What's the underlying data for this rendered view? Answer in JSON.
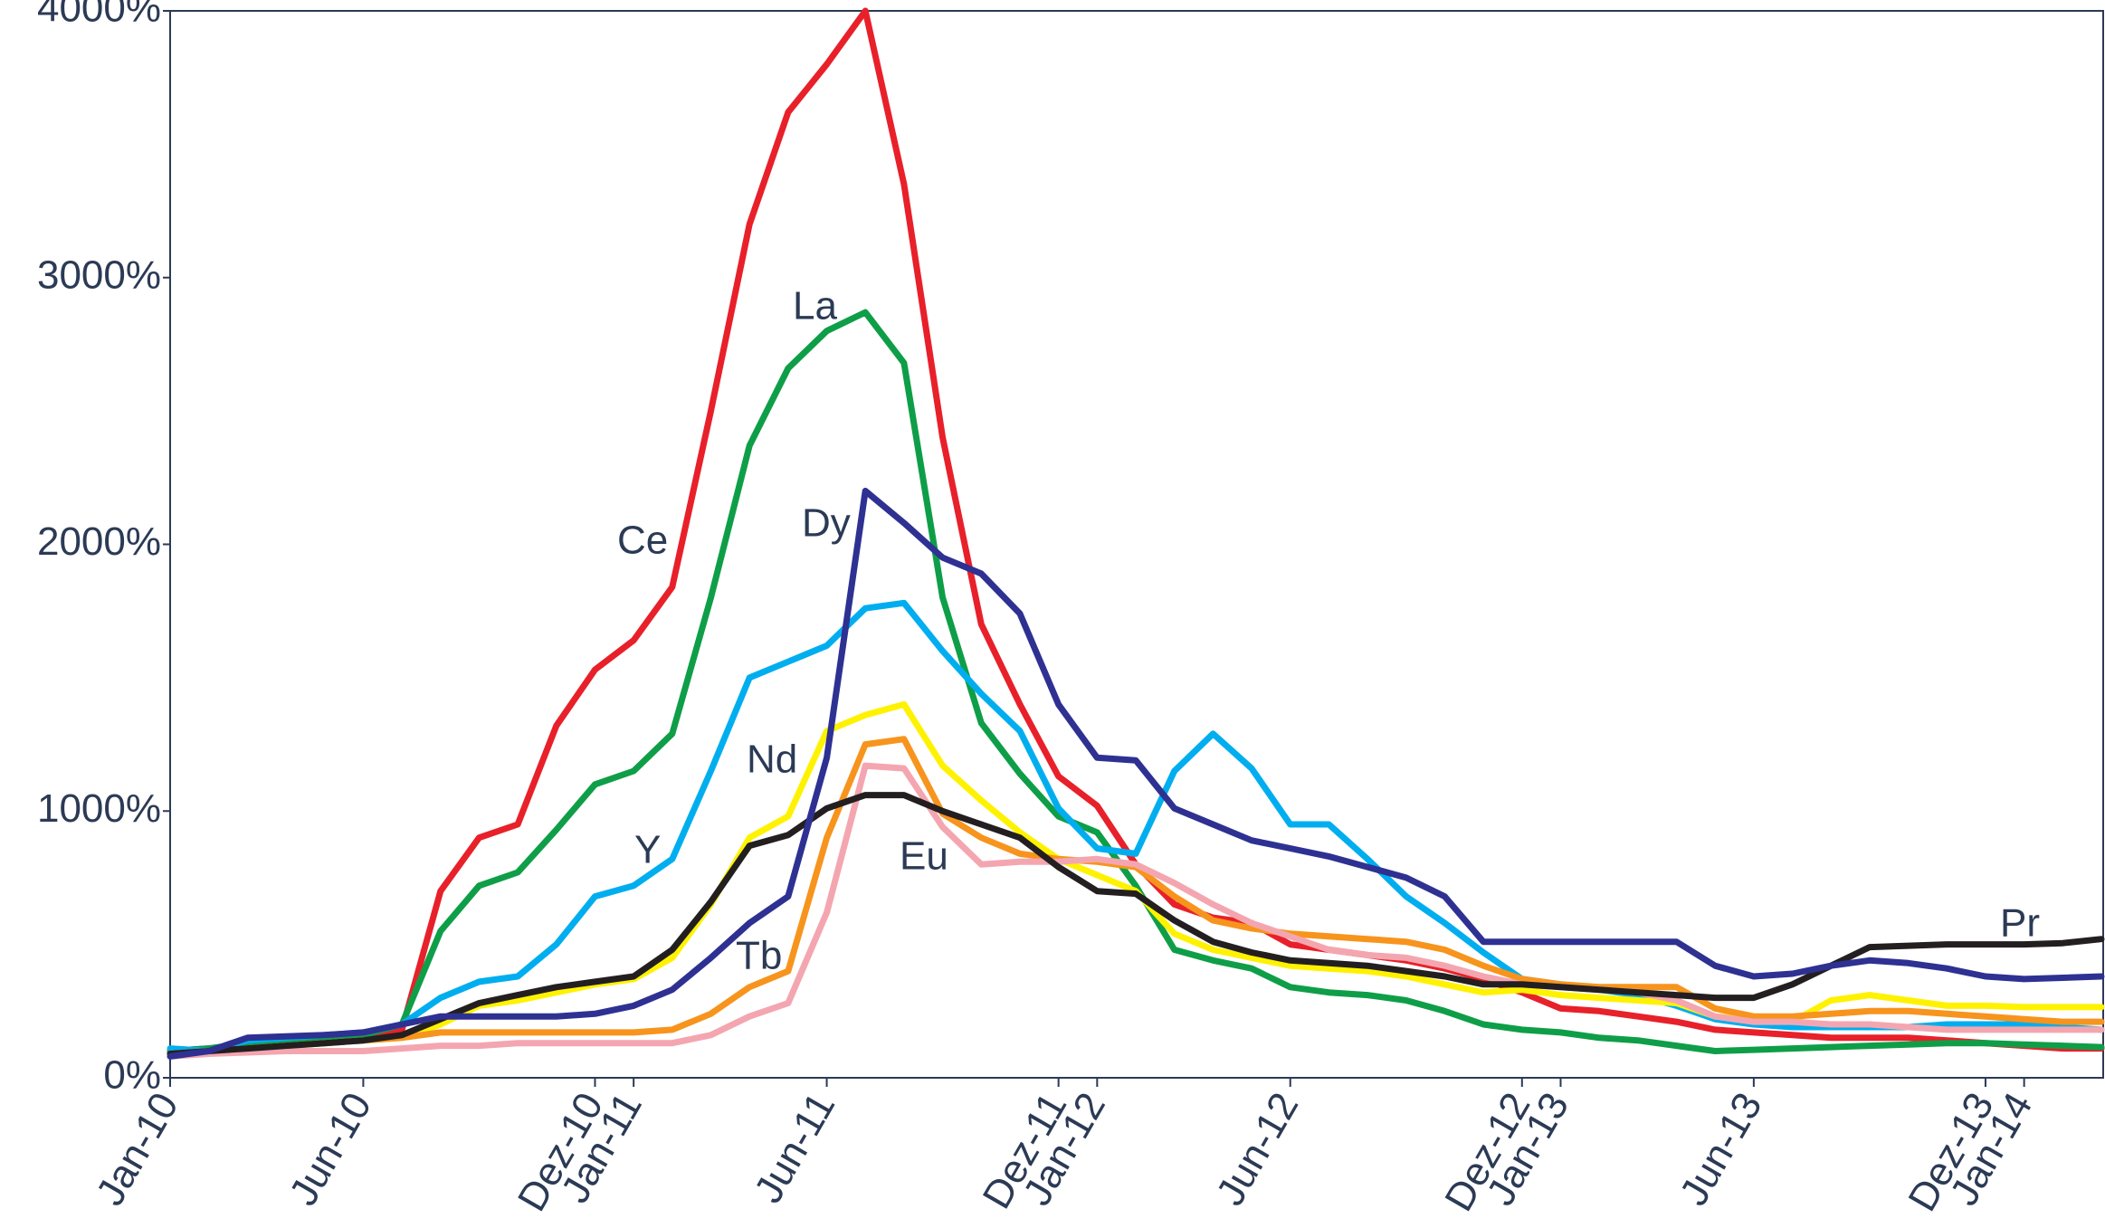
{
  "chart_data": {
    "type": "line",
    "categories": [
      "Jan-10",
      null,
      null,
      null,
      null,
      "Jun-10",
      null,
      null,
      null,
      null,
      null,
      "Dez-10",
      "Jan-11",
      null,
      null,
      null,
      null,
      "Jun-11",
      null,
      null,
      null,
      null,
      null,
      "Dez-11",
      "Jan-12",
      null,
      null,
      null,
      null,
      "Jun-12",
      null,
      null,
      null,
      null,
      null,
      "Dez-12",
      "Jan-13",
      null,
      null,
      null,
      null,
      "Jun-13",
      null,
      null,
      null,
      null,
      null,
      "Dez-13",
      "Jan-14",
      null,
      null
    ],
    "ylim": [
      0,
      4000
    ],
    "yticks": [
      {
        "value": 0,
        "label": "0%"
      },
      {
        "value": 1000,
        "label": "1000%"
      },
      {
        "value": 2000,
        "label": "2000%"
      },
      {
        "value": 3000,
        "label": "3000%"
      },
      {
        "value": 4000,
        "label": "4000%"
      }
    ],
    "series": [
      {
        "name": "Ce",
        "color": "#e8202a",
        "values": [
          100,
          110,
          120,
          130,
          150,
          160,
          180,
          700,
          900,
          950,
          1320,
          1530,
          1640,
          1840,
          2500,
          3200,
          3620,
          3800,
          4000,
          3350,
          2400,
          1700,
          1400,
          1130,
          1020,
          800,
          650,
          600,
          580,
          500,
          480,
          460,
          440,
          410,
          370,
          320,
          260,
          250,
          230,
          210,
          180,
          170,
          160,
          150,
          150,
          150,
          140,
          130,
          120,
          110,
          110
        ]
      },
      {
        "name": "La",
        "color": "#0f9e48",
        "values": [
          100,
          110,
          130,
          140,
          150,
          160,
          200,
          550,
          720,
          770,
          930,
          1100,
          1150,
          1290,
          1800,
          2370,
          2660,
          2800,
          2870,
          2680,
          1800,
          1330,
          1140,
          980,
          920,
          720,
          480,
          440,
          410,
          340,
          320,
          310,
          290,
          250,
          200,
          180,
          170,
          150,
          140,
          120,
          100,
          105,
          110,
          115,
          120,
          125,
          130,
          130,
          125,
          120,
          115
        ]
      },
      {
        "name": "Y",
        "color": "#00aeef",
        "values": [
          110,
          100,
          140,
          150,
          160,
          170,
          200,
          300,
          360,
          380,
          500,
          680,
          720,
          820,
          1150,
          1500,
          1560,
          1620,
          1760,
          1780,
          1600,
          1440,
          1300,
          1010,
          860,
          840,
          1150,
          1290,
          1160,
          950,
          950,
          820,
          680,
          580,
          470,
          370,
          350,
          330,
          310,
          270,
          220,
          200,
          190,
          190,
          190,
          190,
          200,
          200,
          200,
          190,
          180
        ]
      },
      {
        "name": "Nd",
        "color": "#fff200",
        "values": [
          90,
          100,
          110,
          120,
          130,
          140,
          150,
          200,
          270,
          290,
          320,
          350,
          370,
          450,
          650,
          900,
          980,
          1300,
          1360,
          1400,
          1170,
          1040,
          920,
          820,
          760,
          700,
          540,
          480,
          450,
          420,
          410,
          400,
          380,
          350,
          320,
          330,
          310,
          300,
          290,
          280,
          230,
          220,
          210,
          290,
          310,
          290,
          270,
          270,
          265,
          265,
          265
        ]
      },
      {
        "name": "Tb",
        "color": "#f7941d",
        "values": [
          90,
          100,
          110,
          120,
          130,
          140,
          150,
          170,
          170,
          170,
          170,
          170,
          170,
          180,
          240,
          340,
          400,
          900,
          1250,
          1270,
          990,
          900,
          840,
          820,
          810,
          790,
          680,
          590,
          560,
          540,
          530,
          520,
          510,
          480,
          420,
          370,
          350,
          340,
          340,
          340,
          260,
          230,
          230,
          240,
          250,
          250,
          240,
          230,
          220,
          210,
          210
        ]
      },
      {
        "name": "Eu",
        "color": "#f4a6b0",
        "values": [
          80,
          90,
          95,
          100,
          100,
          100,
          110,
          120,
          120,
          130,
          130,
          130,
          130,
          130,
          160,
          230,
          280,
          620,
          1170,
          1160,
          940,
          800,
          810,
          810,
          820,
          800,
          730,
          650,
          580,
          530,
          480,
          460,
          450,
          420,
          380,
          350,
          340,
          330,
          320,
          290,
          230,
          210,
          210,
          200,
          200,
          190,
          180,
          180,
          180,
          180,
          180
        ]
      },
      {
        "name": "Pr",
        "color": "#231f20",
        "values": [
          90,
          100,
          110,
          120,
          130,
          140,
          160,
          220,
          280,
          310,
          340,
          360,
          380,
          480,
          660,
          870,
          910,
          1010,
          1060,
          1060,
          1000,
          950,
          900,
          790,
          700,
          690,
          590,
          510,
          470,
          440,
          430,
          420,
          400,
          380,
          350,
          350,
          340,
          330,
          320,
          310,
          300,
          300,
          350,
          420,
          490,
          495,
          500,
          500,
          500,
          505,
          520
        ]
      },
      {
        "name": "Dy",
        "color": "#2e3192",
        "values": [
          80,
          100,
          150,
          155,
          160,
          170,
          200,
          230,
          230,
          230,
          230,
          240,
          270,
          330,
          450,
          580,
          680,
          1200,
          2200,
          2080,
          1950,
          1890,
          1740,
          1400,
          1200,
          1190,
          1010,
          950,
          890,
          860,
          830,
          790,
          750,
          680,
          510,
          510,
          510,
          510,
          510,
          510,
          420,
          380,
          390,
          420,
          440,
          430,
          410,
          380,
          370,
          375,
          380
        ]
      }
    ]
  }
}
